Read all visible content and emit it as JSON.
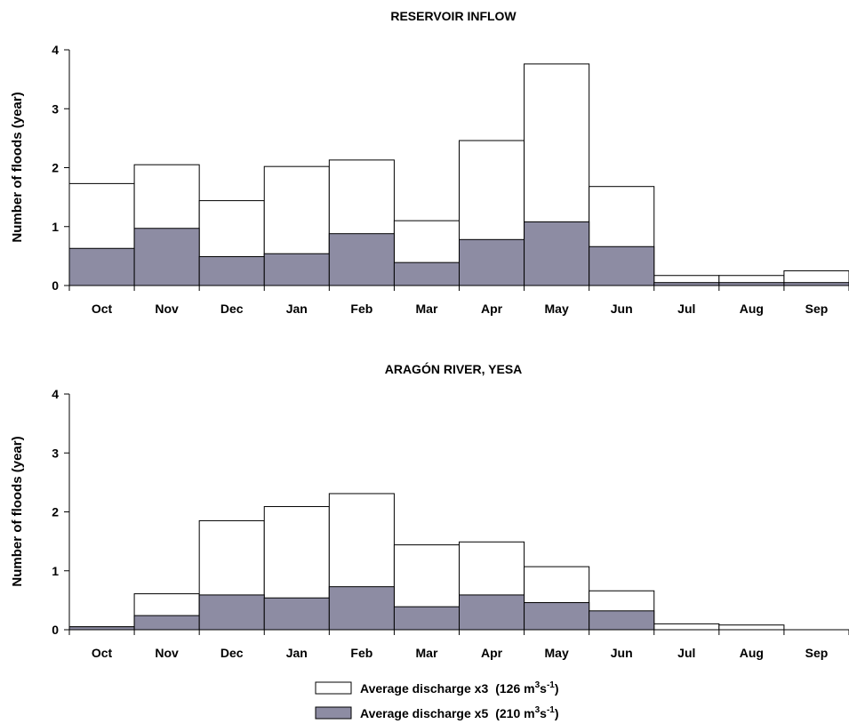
{
  "chart_data": [
    {
      "type": "bar",
      "title": "RESERVOIR INFLOW",
      "ylabel": "Number of floods (year)",
      "xlabel": "",
      "ylim": [
        0,
        4
      ],
      "yticks": [
        "0",
        "1",
        "2",
        "3",
        "4"
      ],
      "categories": [
        "Oct",
        "Nov",
        "Dec",
        "Jan",
        "Feb",
        "Mar",
        "Apr",
        "May",
        "Jun",
        "Jul",
        "Aug",
        "Sep"
      ],
      "series": [
        {
          "name": "Average discharge x3",
          "values": [
            1.73,
            2.05,
            1.44,
            2.02,
            2.13,
            1.1,
            2.46,
            3.76,
            1.68,
            0.17,
            0.17,
            0.25
          ]
        },
        {
          "name": "Average discharge x5",
          "values": [
            0.63,
            0.97,
            0.49,
            0.54,
            0.88,
            0.39,
            0.78,
            1.08,
            0.66,
            0.05,
            0.05,
            0.05
          ]
        }
      ]
    },
    {
      "type": "bar",
      "title": "ARAGÓN RIVER, YESA",
      "ylabel": "Number of floods (year)",
      "xlabel": "",
      "ylim": [
        0,
        4
      ],
      "yticks": [
        "0",
        "1",
        "2",
        "3",
        "4"
      ],
      "categories": [
        "Oct",
        "Nov",
        "Dec",
        "Jan",
        "Feb",
        "Mar",
        "Apr",
        "May",
        "Jun",
        "Jul",
        "Aug",
        "Sep"
      ],
      "series": [
        {
          "name": "Average discharge x3",
          "values": [
            0.05,
            0.61,
            1.85,
            2.09,
            2.31,
            1.44,
            1.49,
            1.07,
            0.66,
            0.1,
            0.08,
            0.0
          ]
        },
        {
          "name": "Average discharge x5",
          "values": [
            0.05,
            0.24,
            0.59,
            0.54,
            0.73,
            0.39,
            0.59,
            0.46,
            0.32,
            0.0,
            0.0,
            0.0
          ]
        }
      ]
    }
  ],
  "legend": {
    "placement": "bottom-center",
    "items": [
      {
        "label": "Average discharge x3",
        "value_text": "(126 m",
        "unit_sup1": "3",
        "unit_mid": "s",
        "unit_sup2": "-1",
        "close": ")",
        "color": "#ffffff"
      },
      {
        "label": "Average discharge x5",
        "value_text": "(210 m",
        "unit_sup1": "3",
        "unit_mid": "s",
        "unit_sup2": "-1",
        "close": ")",
        "color": "#8d8ca3"
      }
    ]
  },
  "colors": {
    "x3_fill": "#ffffff",
    "x5_fill": "#8d8ca3",
    "stroke": "#000000"
  }
}
